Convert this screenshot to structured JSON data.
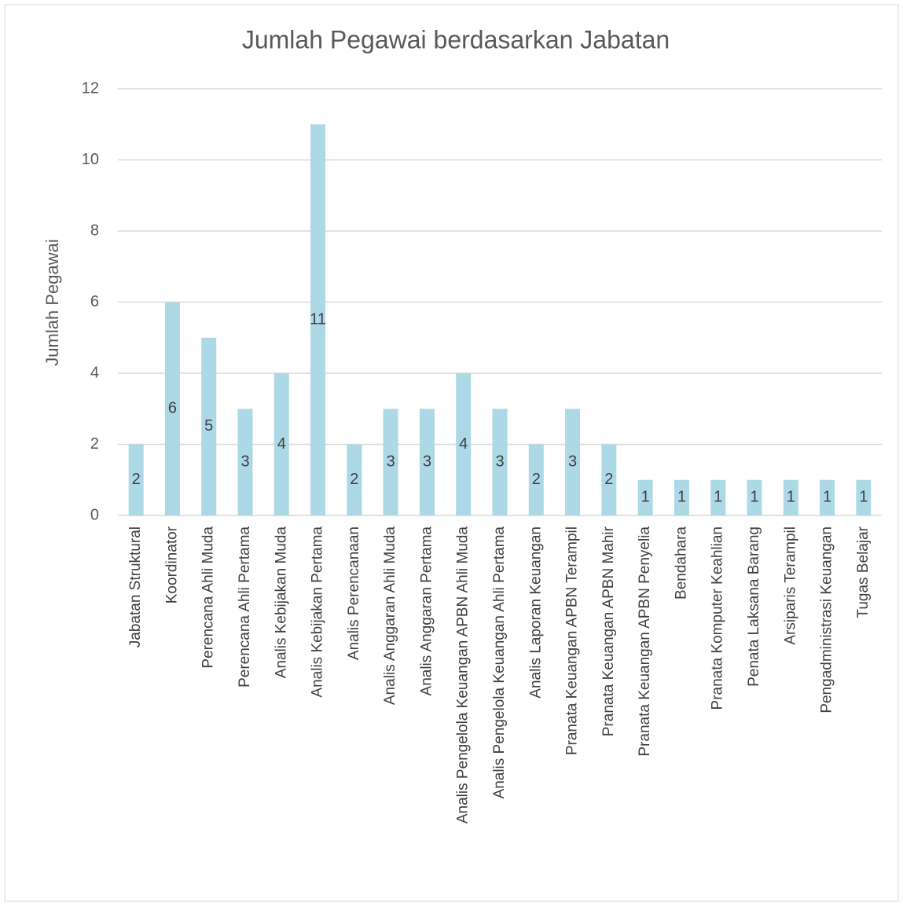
{
  "chart_data": {
    "type": "bar",
    "title": "Jumlah Pegawai berdasarkan Jabatan",
    "y_label": "Jumlah Pegawai",
    "categories": [
      "Jabatan Struktural",
      "Koordinator",
      "Perencana Ahli Muda",
      "Perencana Ahli Pertama",
      "Analis Kebijakan Muda",
      "Analis Kebijakan Pertama",
      "Analis Perencanaan",
      "Analis Anggaran Ahli Muda",
      "Analis Anggaran Pertama",
      "Analis Pengelola Keuangan APBN Ahli Muda",
      "Analis Pengelola Keuangan Ahli Pertama",
      "Analis Laporan Keuangan",
      "Pranata Keuangan APBN Terampil",
      "Pranata Keuangan APBN Mahir",
      "Pranata Keuangan APBN Penyelia",
      "Bendahara",
      "Pranata Komputer Keahlian",
      "Penata Laksana Barang",
      "Arsiparis Terampil",
      "Pengadministrasi Keuangan",
      "Tugas Belajar"
    ],
    "values": [
      2,
      6,
      5,
      3,
      4,
      11,
      2,
      3,
      3,
      4,
      3,
      2,
      3,
      2,
      1,
      1,
      1,
      1,
      1,
      1,
      1
    ],
    "color": "#add8e6",
    "ylim": [
      0,
      12
    ],
    "yticks": [
      0,
      2,
      4,
      6,
      8,
      10,
      12
    ],
    "grid": true,
    "data_labels": true
  }
}
